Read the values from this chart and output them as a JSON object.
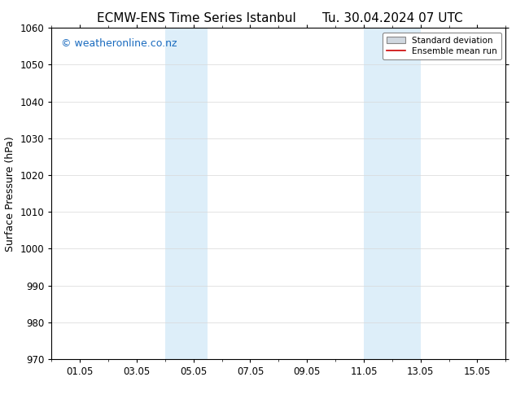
{
  "title_left": "ECMW-ENS Time Series Istanbul",
  "title_right": "Tu. 30.04.2024 07 UTC",
  "ylabel": "Surface Pressure (hPa)",
  "ylim": [
    970,
    1060
  ],
  "yticks": [
    970,
    980,
    990,
    1000,
    1010,
    1020,
    1030,
    1040,
    1050,
    1060
  ],
  "xtick_labels": [
    "01.05",
    "03.05",
    "05.05",
    "07.05",
    "09.05",
    "11.05",
    "13.05",
    "15.05"
  ],
  "xtick_positions": [
    1,
    3,
    5,
    7,
    9,
    11,
    13,
    15
  ],
  "xlim": [
    0,
    16
  ],
  "shaded_bands": [
    {
      "x_start": 4.0,
      "x_end": 5.5,
      "color": "#ddeef9"
    },
    {
      "x_start": 11.0,
      "x_end": 13.0,
      "color": "#ddeef9"
    }
  ],
  "watermark_text": "© weatheronline.co.nz",
  "watermark_color": "#1a6bbf",
  "watermark_fontsize": 9,
  "legend_std_color": "#d0d8e0",
  "legend_mean_color": "#cc0000",
  "background_color": "#ffffff",
  "title_fontsize": 11,
  "axis_label_fontsize": 9,
  "tick_fontsize": 8.5,
  "spine_color": "#000000"
}
